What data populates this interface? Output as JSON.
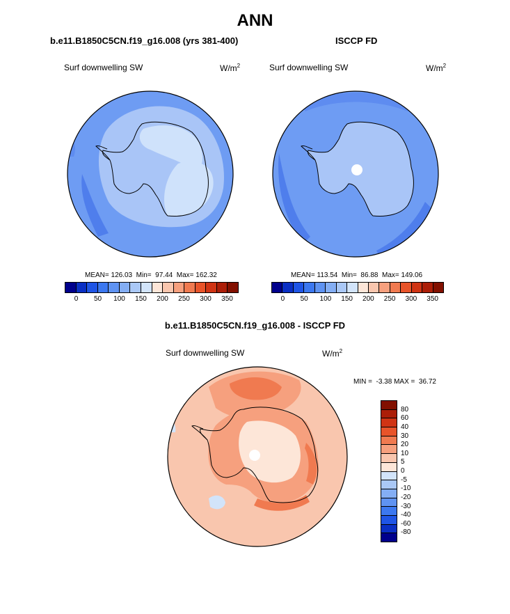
{
  "title": "ANN",
  "panels": {
    "left": {
      "subtitle": "b.e11.B1850C5CN.f19_g16.008 (yrs 381-400)",
      "variable": "Surf downwelling SW",
      "units_base": "W/m",
      "units_exp": "2",
      "stats": "MEAN= 126.03  Min=  97.44  Max= 162.32"
    },
    "right": {
      "subtitle": "ISCCP FD",
      "variable": "Surf downwelling SW",
      "units_base": "W/m",
      "units_exp": "2",
      "stats": "MEAN= 113.54  Min=  86.88  Max= 149.06"
    },
    "diff": {
      "subtitle": "b.e11.B1850C5CN.f19_g16.008 - ISCCP FD",
      "variable": "Surf downwelling SW",
      "units_base": "W/m",
      "units_exp": "2",
      "stats": "MIN =  -3.38 MAX =  36.72"
    }
  },
  "colorbar_abs": {
    "labels": [
      "0",
      "50",
      "100",
      "150",
      "200",
      "250",
      "300",
      "350"
    ],
    "colors": [
      "#00008c",
      "#0a2fc4",
      "#1f55e6",
      "#3c78f0",
      "#5f93f2",
      "#84aef4",
      "#aac8f6",
      "#d2e4fa",
      "#fde6d8",
      "#f9c6ae",
      "#f6a07e",
      "#f07a50",
      "#e8542a",
      "#d03414",
      "#ac1e08",
      "#821000"
    ]
  },
  "colorbar_diff": {
    "labels": [
      "80",
      "60",
      "40",
      "30",
      "20",
      "10",
      "5",
      "0",
      "-5",
      "-10",
      "-20",
      "-30",
      "-40",
      "-60",
      "-80"
    ],
    "colors": [
      "#821000",
      "#ac1e08",
      "#d03414",
      "#e8542a",
      "#f07a50",
      "#f6a07e",
      "#f9c6ae",
      "#fde6d8",
      "#d2e4fa",
      "#aac8f6",
      "#84aef4",
      "#5f93f2",
      "#3c78f0",
      "#1f55e6",
      "#0a2fc4",
      "#00008c"
    ]
  },
  "colors": {
    "ocean_mid": "#6e9cf3",
    "ocean_low": "#5e8cf0",
    "ocean_lowest": "#4f7eec",
    "land_light": "#a9c5f7",
    "land_lighter": "#cfe2fb",
    "diff_base": "#f9c6ae",
    "diff_mid": "#f6a07e",
    "diff_high": "#f07a50",
    "diff_light": "#fde6d8",
    "diff_neg": "#d2e4fa"
  }
}
